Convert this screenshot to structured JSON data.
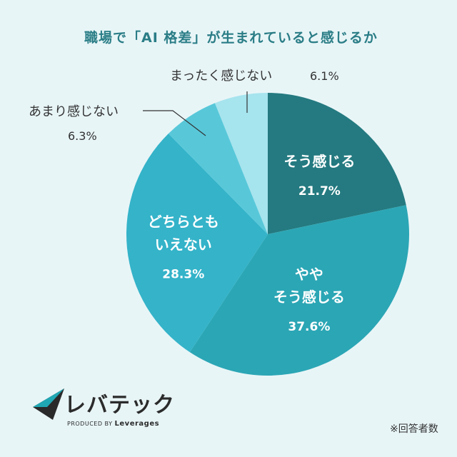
{
  "chart_data": {
    "type": "pie",
    "title": "職場で「AI 格差」が生まれていると感じるか",
    "unit": "%",
    "slices": [
      {
        "lines": [
          "そう感じる"
        ],
        "value": 21.7,
        "value_label": "21.7%",
        "color": "#247a80",
        "label_position": "inside"
      },
      {
        "lines": [
          "やや",
          "そう感じる"
        ],
        "value": 37.6,
        "value_label": "37.6%",
        "color": "#2ba6b5",
        "label_position": "inside"
      },
      {
        "lines": [
          "どちらとも",
          "いえない"
        ],
        "value": 28.3,
        "value_label": "28.3%",
        "color": "#34b3c9",
        "label_position": "inside"
      },
      {
        "lines": [
          "あまり感じない"
        ],
        "value": 6.3,
        "value_label": "6.3%",
        "color": "#58c8d9",
        "label_position": "outside"
      },
      {
        "lines": [
          "まったく感じない"
        ],
        "value": 6.1,
        "value_label": "6.1%",
        "color": "#a6e4ee",
        "label_position": "outside"
      }
    ]
  },
  "brand": {
    "name": "レバテック",
    "produced_by": "PRODUCED BY",
    "company": "Leverages"
  },
  "footnote": "※回答者数"
}
